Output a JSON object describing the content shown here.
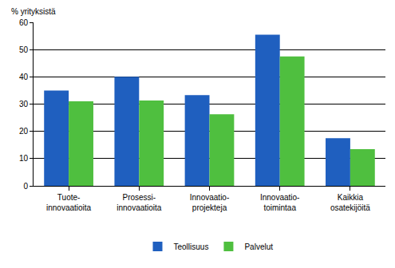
{
  "chart_data": {
    "type": "bar",
    "y_label": "% yrityksistä",
    "categories": [
      "Tuote-\ninnovaatioita",
      "Prosessi-\ninnovaatioita",
      "Innovaatio-\nprojekteja",
      "Innovaatio-\ntoimintaa",
      "Kaikkia\nosatekijöitä"
    ],
    "series": [
      {
        "name": "Teollisuus",
        "color": "#1f5fbf",
        "values": [
          35,
          40,
          33.3,
          55.5,
          17.5
        ]
      },
      {
        "name": "Palvelut",
        "color": "#4fbf3f",
        "values": [
          31,
          31.3,
          26.3,
          47.5,
          13.5
        ]
      }
    ],
    "ylim": [
      0,
      60
    ],
    "yticks": [
      0,
      10,
      20,
      30,
      40,
      50,
      60
    ],
    "grid": true,
    "legend": "bottom"
  }
}
